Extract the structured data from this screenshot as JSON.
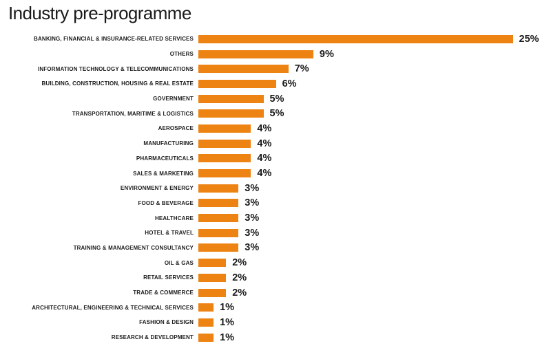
{
  "page": {
    "title": "Industry pre-programme"
  },
  "chart_data": {
    "type": "bar",
    "orientation": "horizontal",
    "title": "Industry pre-programme",
    "categories": [
      "BANKING, FINANCIAL & INSURANCE-RELATED SERVICES",
      "OTHERS",
      "INFORMATION TECHNOLOGY & TELECOMMUNICATIONS",
      "BUILDING, CONSTRUCTION, HOUSING & REAL ESTATE",
      "GOVERNMENT",
      "TRANSPORTATION, MARITIME & LOGISTICS",
      "AEROSPACE",
      "MANUFACTURING",
      "PHARMACEUTICALS",
      "SALES & MARKETING",
      "ENVIRONMENT & ENERGY",
      "FOOD & BEVERAGE",
      "HEALTHCARE",
      "HOTEL & TRAVEL",
      "TRAINING & MANAGEMENT CONSULTANCY",
      "OIL & GAS",
      "RETAIL SERVICES",
      "TRADE & COMMERCE",
      "ARCHITECTURAL, ENGINEERING & TECHNICAL SERVICES",
      "FASHION & DESIGN",
      "RESEARCH & DEVELOPMENT"
    ],
    "values": [
      25,
      9,
      7,
      6,
      5,
      5,
      4,
      4,
      4,
      4,
      3,
      3,
      3,
      3,
      3,
      2,
      2,
      2,
      1,
      1,
      1
    ],
    "value_labels": [
      "25%",
      "9%",
      "7%",
      "6%",
      "5%",
      "5%",
      "4%",
      "4%",
      "4%",
      "4%",
      "3%",
      "3%",
      "3%",
      "3%",
      "3%",
      "2%",
      "2%",
      "2%",
      "1%",
      "1%",
      "1%"
    ],
    "xlabel": "",
    "ylabel": "",
    "xlim": [
      0,
      25
    ],
    "grid": false,
    "legend": false,
    "value_label_position": "end-of-bar",
    "bar_color": "#ED8312",
    "text_color": "#1A1A1A",
    "background_color": "#FFFFFF"
  }
}
